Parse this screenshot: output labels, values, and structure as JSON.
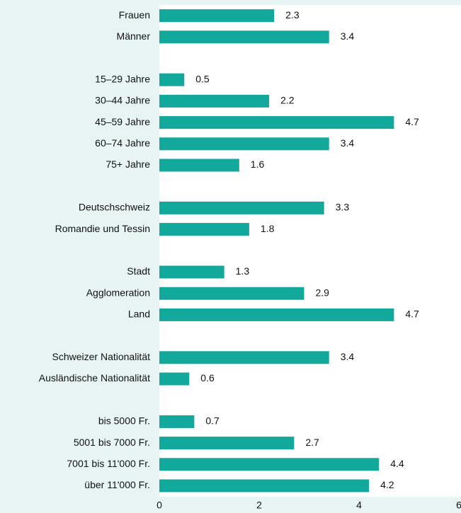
{
  "chart_data": {
    "type": "barh",
    "categories": [
      "Frauen",
      "Männer",
      null,
      "15–29 Jahre",
      "30–44 Jahre",
      "45–59 Jahre",
      "60–74 Jahre",
      "75+ Jahre",
      null,
      "Deutschschweiz",
      "Romandie und Tessin",
      null,
      "Stadt",
      "Agglomeration",
      "Land",
      null,
      "Schweizer Nationalität",
      "Ausländische Nationalität",
      null,
      "bis 5000 Fr.",
      "5001 bis 7000 Fr.",
      "7001 bis 11'000 Fr.",
      "über 11'000 Fr."
    ],
    "values": [
      2.3,
      3.4,
      null,
      0.5,
      2.2,
      4.7,
      3.4,
      1.6,
      null,
      3.3,
      1.8,
      null,
      1.3,
      2.9,
      4.7,
      null,
      3.4,
      0.6,
      null,
      0.7,
      2.7,
      4.4,
      4.2
    ],
    "color": "#12a89b",
    "xlim": [
      0,
      6
    ],
    "xticks": [
      0,
      2,
      4,
      6
    ]
  }
}
